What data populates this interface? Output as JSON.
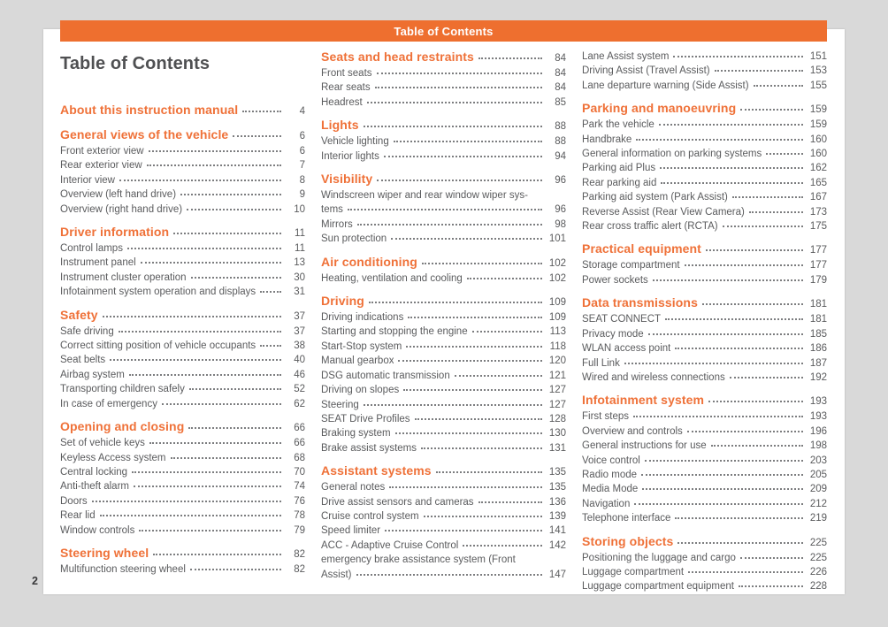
{
  "meta": {
    "accent_orange": "#ee6f2f",
    "heading_orange": "#ef7138",
    "body_text_gray": "#5a5b5d",
    "title_gray": "#4f5052",
    "background_gray": "#d9d9d9",
    "page_white": "#ffffff"
  },
  "header": {
    "title": "Table of Contents"
  },
  "title": "Table of Contents",
  "folio": "2",
  "columns": [
    {
      "rows": [
        {
          "type": "heading",
          "label": "About this instruction manual",
          "page": "4"
        },
        {
          "type": "heading",
          "label": "General views of the vehicle",
          "page": "6"
        },
        {
          "type": "entry",
          "label": "Front exterior view",
          "page": "6"
        },
        {
          "type": "entry",
          "label": "Rear exterior view",
          "page": "7"
        },
        {
          "type": "entry",
          "label": "Interior view",
          "page": "8"
        },
        {
          "type": "entry",
          "label": "Overview (left hand drive)",
          "page": "9"
        },
        {
          "type": "entry",
          "label": "Overview (right hand drive)",
          "page": "10"
        },
        {
          "type": "heading",
          "label": "Driver information",
          "page": "11"
        },
        {
          "type": "entry",
          "label": "Control lamps",
          "page": "11"
        },
        {
          "type": "entry",
          "label": "Instrument panel",
          "page": "13"
        },
        {
          "type": "entry",
          "label": "Instrument cluster operation",
          "page": "30"
        },
        {
          "type": "entry",
          "label": "Infotainment system operation and displays",
          "page": "31"
        },
        {
          "type": "heading",
          "label": "Safety",
          "page": "37"
        },
        {
          "type": "entry",
          "label": "Safe driving",
          "page": "37"
        },
        {
          "type": "entry",
          "label": "Correct sitting position of vehicle occupants",
          "page": "38"
        },
        {
          "type": "entry",
          "label": "Seat belts",
          "page": "40"
        },
        {
          "type": "entry",
          "label": "Airbag system",
          "page": "46"
        },
        {
          "type": "entry",
          "label": "Transporting children safely",
          "page": "52"
        },
        {
          "type": "entry",
          "label": "In case of emergency",
          "page": "62"
        },
        {
          "type": "heading",
          "label": "Opening and closing",
          "page": "66"
        },
        {
          "type": "entry",
          "label": "Set of vehicle keys",
          "page": "66"
        },
        {
          "type": "entry",
          "label": "Keyless Access system",
          "page": "68"
        },
        {
          "type": "entry",
          "label": "Central locking",
          "page": "70"
        },
        {
          "type": "entry",
          "label": "Anti-theft alarm",
          "page": "74"
        },
        {
          "type": "entry",
          "label": "Doors",
          "page": "76"
        },
        {
          "type": "entry",
          "label": "Rear lid",
          "page": "78"
        },
        {
          "type": "entry",
          "label": "Window controls",
          "page": "79"
        },
        {
          "type": "heading",
          "label": "Steering wheel",
          "page": "82"
        },
        {
          "type": "entry",
          "label": "Multifunction steering wheel",
          "page": "82"
        }
      ]
    },
    {
      "rows": [
        {
          "type": "heading",
          "label": "Seats and head restraints",
          "page": "84"
        },
        {
          "type": "entry",
          "label": "Front seats",
          "page": "84"
        },
        {
          "type": "entry",
          "label": "Rear seats",
          "page": "84"
        },
        {
          "type": "entry",
          "label": "Headrest",
          "page": "85"
        },
        {
          "type": "heading",
          "label": "Lights",
          "page": "88"
        },
        {
          "type": "entry",
          "label": "Vehicle lighting",
          "page": "88"
        },
        {
          "type": "entry",
          "label": "Interior lights",
          "page": "94"
        },
        {
          "type": "heading",
          "label": "Visibility",
          "page": "96"
        },
        {
          "type": "wrap",
          "label": "Windscreen wiper and rear window wiper sys-"
        },
        {
          "type": "entry",
          "label": "tems",
          "page": "96"
        },
        {
          "type": "entry",
          "label": "Mirrors",
          "page": "98"
        },
        {
          "type": "entry",
          "label": "Sun protection",
          "page": "101"
        },
        {
          "type": "heading",
          "label": "Air conditioning",
          "page": "102"
        },
        {
          "type": "entry",
          "label": "Heating, ventilation and cooling",
          "page": "102"
        },
        {
          "type": "heading",
          "label": "Driving",
          "page": "109"
        },
        {
          "type": "entry",
          "label": "Driving indications",
          "page": "109"
        },
        {
          "type": "entry",
          "label": "Starting and stopping the engine",
          "page": "113"
        },
        {
          "type": "entry",
          "label": "Start-Stop system",
          "page": "118"
        },
        {
          "type": "entry",
          "label": "Manual gearbox",
          "page": "120"
        },
        {
          "type": "entry",
          "label": "DSG automatic transmission",
          "page": "121"
        },
        {
          "type": "entry",
          "label": "Driving on slopes",
          "page": "127"
        },
        {
          "type": "entry",
          "label": "Steering",
          "page": "127"
        },
        {
          "type": "entry",
          "label": "SEAT Drive Profiles",
          "page": "128"
        },
        {
          "type": "entry",
          "label": "Braking system",
          "page": "130"
        },
        {
          "type": "entry",
          "label": "Brake assist systems",
          "page": "131"
        },
        {
          "type": "heading",
          "label": "Assistant systems",
          "page": "135"
        },
        {
          "type": "entry",
          "label": "General notes",
          "page": "135"
        },
        {
          "type": "entry",
          "label": "Drive assist sensors and cameras",
          "page": "136"
        },
        {
          "type": "entry",
          "label": "Cruise control system",
          "page": "139"
        },
        {
          "type": "entry",
          "label": "Speed limiter",
          "page": "141"
        },
        {
          "type": "entry",
          "label": "ACC - Adaptive Cruise Control",
          "page": "142"
        },
        {
          "type": "wrap",
          "label": "emergency brake assistance system (Front"
        },
        {
          "type": "entry",
          "label": "Assist)",
          "page": "147"
        }
      ]
    },
    {
      "rows": [
        {
          "type": "entry",
          "label": "Lane Assist system",
          "page": "151"
        },
        {
          "type": "entry",
          "label": "Driving Assist (Travel Assist)",
          "page": "153"
        },
        {
          "type": "entry",
          "label": "Lane departure warning (Side Assist)",
          "page": "155"
        },
        {
          "type": "heading",
          "label": "Parking and manoeuvring",
          "page": "159"
        },
        {
          "type": "entry",
          "label": "Park the vehicle",
          "page": "159"
        },
        {
          "type": "entry",
          "label": "Handbrake",
          "page": "160"
        },
        {
          "type": "entry",
          "label": "General information on parking systems",
          "page": "160"
        },
        {
          "type": "entry",
          "label": "Parking aid Plus",
          "page": "162"
        },
        {
          "type": "entry",
          "label": "Rear parking aid",
          "page": "165"
        },
        {
          "type": "entry",
          "label": "Parking aid system (Park Assist)",
          "page": "167"
        },
        {
          "type": "entry",
          "label": "Reverse Assist (Rear View Camera)",
          "page": "173"
        },
        {
          "type": "entry",
          "label": "Rear cross traffic alert (RCTA)",
          "page": "175"
        },
        {
          "type": "heading",
          "label": "Practical equipment",
          "page": "177"
        },
        {
          "type": "entry",
          "label": "Storage compartment",
          "page": "177"
        },
        {
          "type": "entry",
          "label": "Power sockets",
          "page": "179"
        },
        {
          "type": "heading",
          "label": "Data transmissions",
          "page": "181"
        },
        {
          "type": "entry",
          "label": "SEAT CONNECT",
          "page": "181"
        },
        {
          "type": "entry",
          "label": "Privacy mode",
          "page": "185"
        },
        {
          "type": "entry",
          "label": "WLAN access point",
          "page": "186"
        },
        {
          "type": "entry",
          "label": "Full Link",
          "page": "187"
        },
        {
          "type": "entry",
          "label": "Wired and wireless connections",
          "page": "192"
        },
        {
          "type": "heading",
          "label": "Infotainment system",
          "page": "193"
        },
        {
          "type": "entry",
          "label": "First steps",
          "page": "193"
        },
        {
          "type": "entry",
          "label": "Overview and controls",
          "page": "196"
        },
        {
          "type": "entry",
          "label": "General instructions for use",
          "page": "198"
        },
        {
          "type": "entry",
          "label": "Voice control",
          "page": "203"
        },
        {
          "type": "entry",
          "label": "Radio mode",
          "page": "205"
        },
        {
          "type": "entry",
          "label": "Media Mode",
          "page": "209"
        },
        {
          "type": "entry",
          "label": "Navigation",
          "page": "212"
        },
        {
          "type": "entry",
          "label": "Telephone interface",
          "page": "219"
        },
        {
          "type": "heading",
          "label": "Storing objects",
          "page": "225"
        },
        {
          "type": "entry",
          "label": "Positioning the luggage and cargo",
          "page": "225"
        },
        {
          "type": "entry",
          "label": "Luggage compartment",
          "page": "226"
        },
        {
          "type": "entry",
          "label": "Luggage compartment equipment",
          "page": "228"
        }
      ]
    }
  ]
}
